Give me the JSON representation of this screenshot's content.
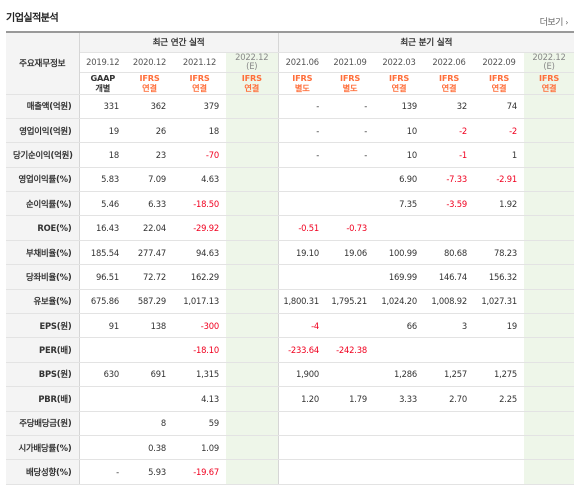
{
  "header": {
    "title": "기업실적분석",
    "more_link": "더보기",
    "more_chevron": "›"
  },
  "table": {
    "corner_label": "주요재무정보",
    "groups": [
      "최근 연간 실적",
      "최근 분기 실적"
    ],
    "columns": [
      {
        "period": "2019.12",
        "std1": "GAAP",
        "std2": "개별",
        "std_style": "gaap",
        "estimate": false
      },
      {
        "period": "2020.12",
        "std1": "IFRS",
        "std2": "연결",
        "std_style": "ifrs",
        "estimate": false
      },
      {
        "period": "2021.12",
        "std1": "IFRS",
        "std2": "연결",
        "std_style": "ifrs",
        "estimate": false
      },
      {
        "period": "2022.12",
        "period_sub": "(E)",
        "std1": "IFRS",
        "std2": "연결",
        "std_style": "ifrs",
        "estimate": true
      },
      {
        "period": "2021.06",
        "std1": "IFRS",
        "std2": "별도",
        "std_style": "ifrs",
        "estimate": false
      },
      {
        "period": "2021.09",
        "std1": "IFRS",
        "std2": "별도",
        "std_style": "ifrs",
        "estimate": false
      },
      {
        "period": "2022.03",
        "std1": "IFRS",
        "std2": "연결",
        "std_style": "ifrs",
        "estimate": false
      },
      {
        "period": "2022.06",
        "std1": "IFRS",
        "std2": "연결",
        "std_style": "ifrs",
        "estimate": false
      },
      {
        "period": "2022.09",
        "std1": "IFRS",
        "std2": "연결",
        "std_style": "ifrs",
        "estimate": false
      },
      {
        "period": "2022.12",
        "period_sub": "(E)",
        "std1": "IFRS",
        "std2": "연결",
        "std_style": "ifrs",
        "estimate": true
      }
    ],
    "rows": [
      {
        "label": "매출액(억원)",
        "values": [
          "331",
          "362",
          "379",
          "",
          "-",
          "-",
          "139",
          "32",
          "74",
          ""
        ]
      },
      {
        "label": "영업이익(억원)",
        "values": [
          "19",
          "26",
          "18",
          "",
          "-",
          "-",
          "10",
          "-2",
          "-2",
          ""
        ]
      },
      {
        "label": "당기순이익(억원)",
        "values": [
          "18",
          "23",
          "-70",
          "",
          "-",
          "-",
          "10",
          "-1",
          "1",
          ""
        ]
      },
      {
        "label": "영업이익률(%)",
        "values": [
          "5.83",
          "7.09",
          "4.63",
          "",
          "",
          "",
          "6.90",
          "-7.33",
          "-2.91",
          ""
        ]
      },
      {
        "label": "순이익률(%)",
        "values": [
          "5.46",
          "6.33",
          "-18.50",
          "",
          "",
          "",
          "7.35",
          "-3.59",
          "1.92",
          ""
        ]
      },
      {
        "label": "ROE(%)",
        "values": [
          "16.43",
          "22.04",
          "-29.92",
          "",
          "-0.51",
          "-0.73",
          "",
          "",
          "",
          ""
        ]
      },
      {
        "label": "부채비율(%)",
        "values": [
          "185.54",
          "277.47",
          "94.63",
          "",
          "19.10",
          "19.06",
          "100.99",
          "80.68",
          "78.23",
          ""
        ]
      },
      {
        "label": "당좌비율(%)",
        "values": [
          "96.51",
          "72.72",
          "162.29",
          "",
          "",
          "",
          "169.99",
          "146.74",
          "156.32",
          ""
        ]
      },
      {
        "label": "유보율(%)",
        "values": [
          "675.86",
          "587.29",
          "1,017.13",
          "",
          "1,800.31",
          "1,795.21",
          "1,024.20",
          "1,008.92",
          "1,027.31",
          ""
        ]
      },
      {
        "label": "EPS(원)",
        "values": [
          "91",
          "138",
          "-300",
          "",
          "-4",
          "",
          "66",
          "3",
          "19",
          ""
        ]
      },
      {
        "label": "PER(배)",
        "values": [
          "",
          "",
          "-18.10",
          "",
          "-233.64",
          "-242.38",
          "",
          "",
          "",
          ""
        ]
      },
      {
        "label": "BPS(원)",
        "values": [
          "630",
          "691",
          "1,315",
          "",
          "1,900",
          "",
          "1,286",
          "1,257",
          "1,275",
          ""
        ]
      },
      {
        "label": "PBR(배)",
        "values": [
          "",
          "",
          "4.13",
          "",
          "1.20",
          "1.79",
          "3.33",
          "2.70",
          "2.25",
          ""
        ]
      },
      {
        "label": "주당배당금(원)",
        "values": [
          "",
          "8",
          "59",
          "",
          "",
          "",
          "",
          "",
          "",
          ""
        ]
      },
      {
        "label": "시가배당률(%)",
        "values": [
          "",
          "0.38",
          "1.09",
          "",
          "",
          "",
          "",
          "",
          "",
          ""
        ]
      },
      {
        "label": "배당성향(%)",
        "values": [
          "-",
          "5.93",
          "-19.67",
          "",
          "",
          "",
          "",
          "",
          "",
          ""
        ]
      }
    ]
  },
  "colors": {
    "negative": "#f0001f",
    "ifrs_label": "#ff6e3a",
    "estimate_bg": "#eef6e9",
    "header_bg": "#f4f4f4"
  }
}
